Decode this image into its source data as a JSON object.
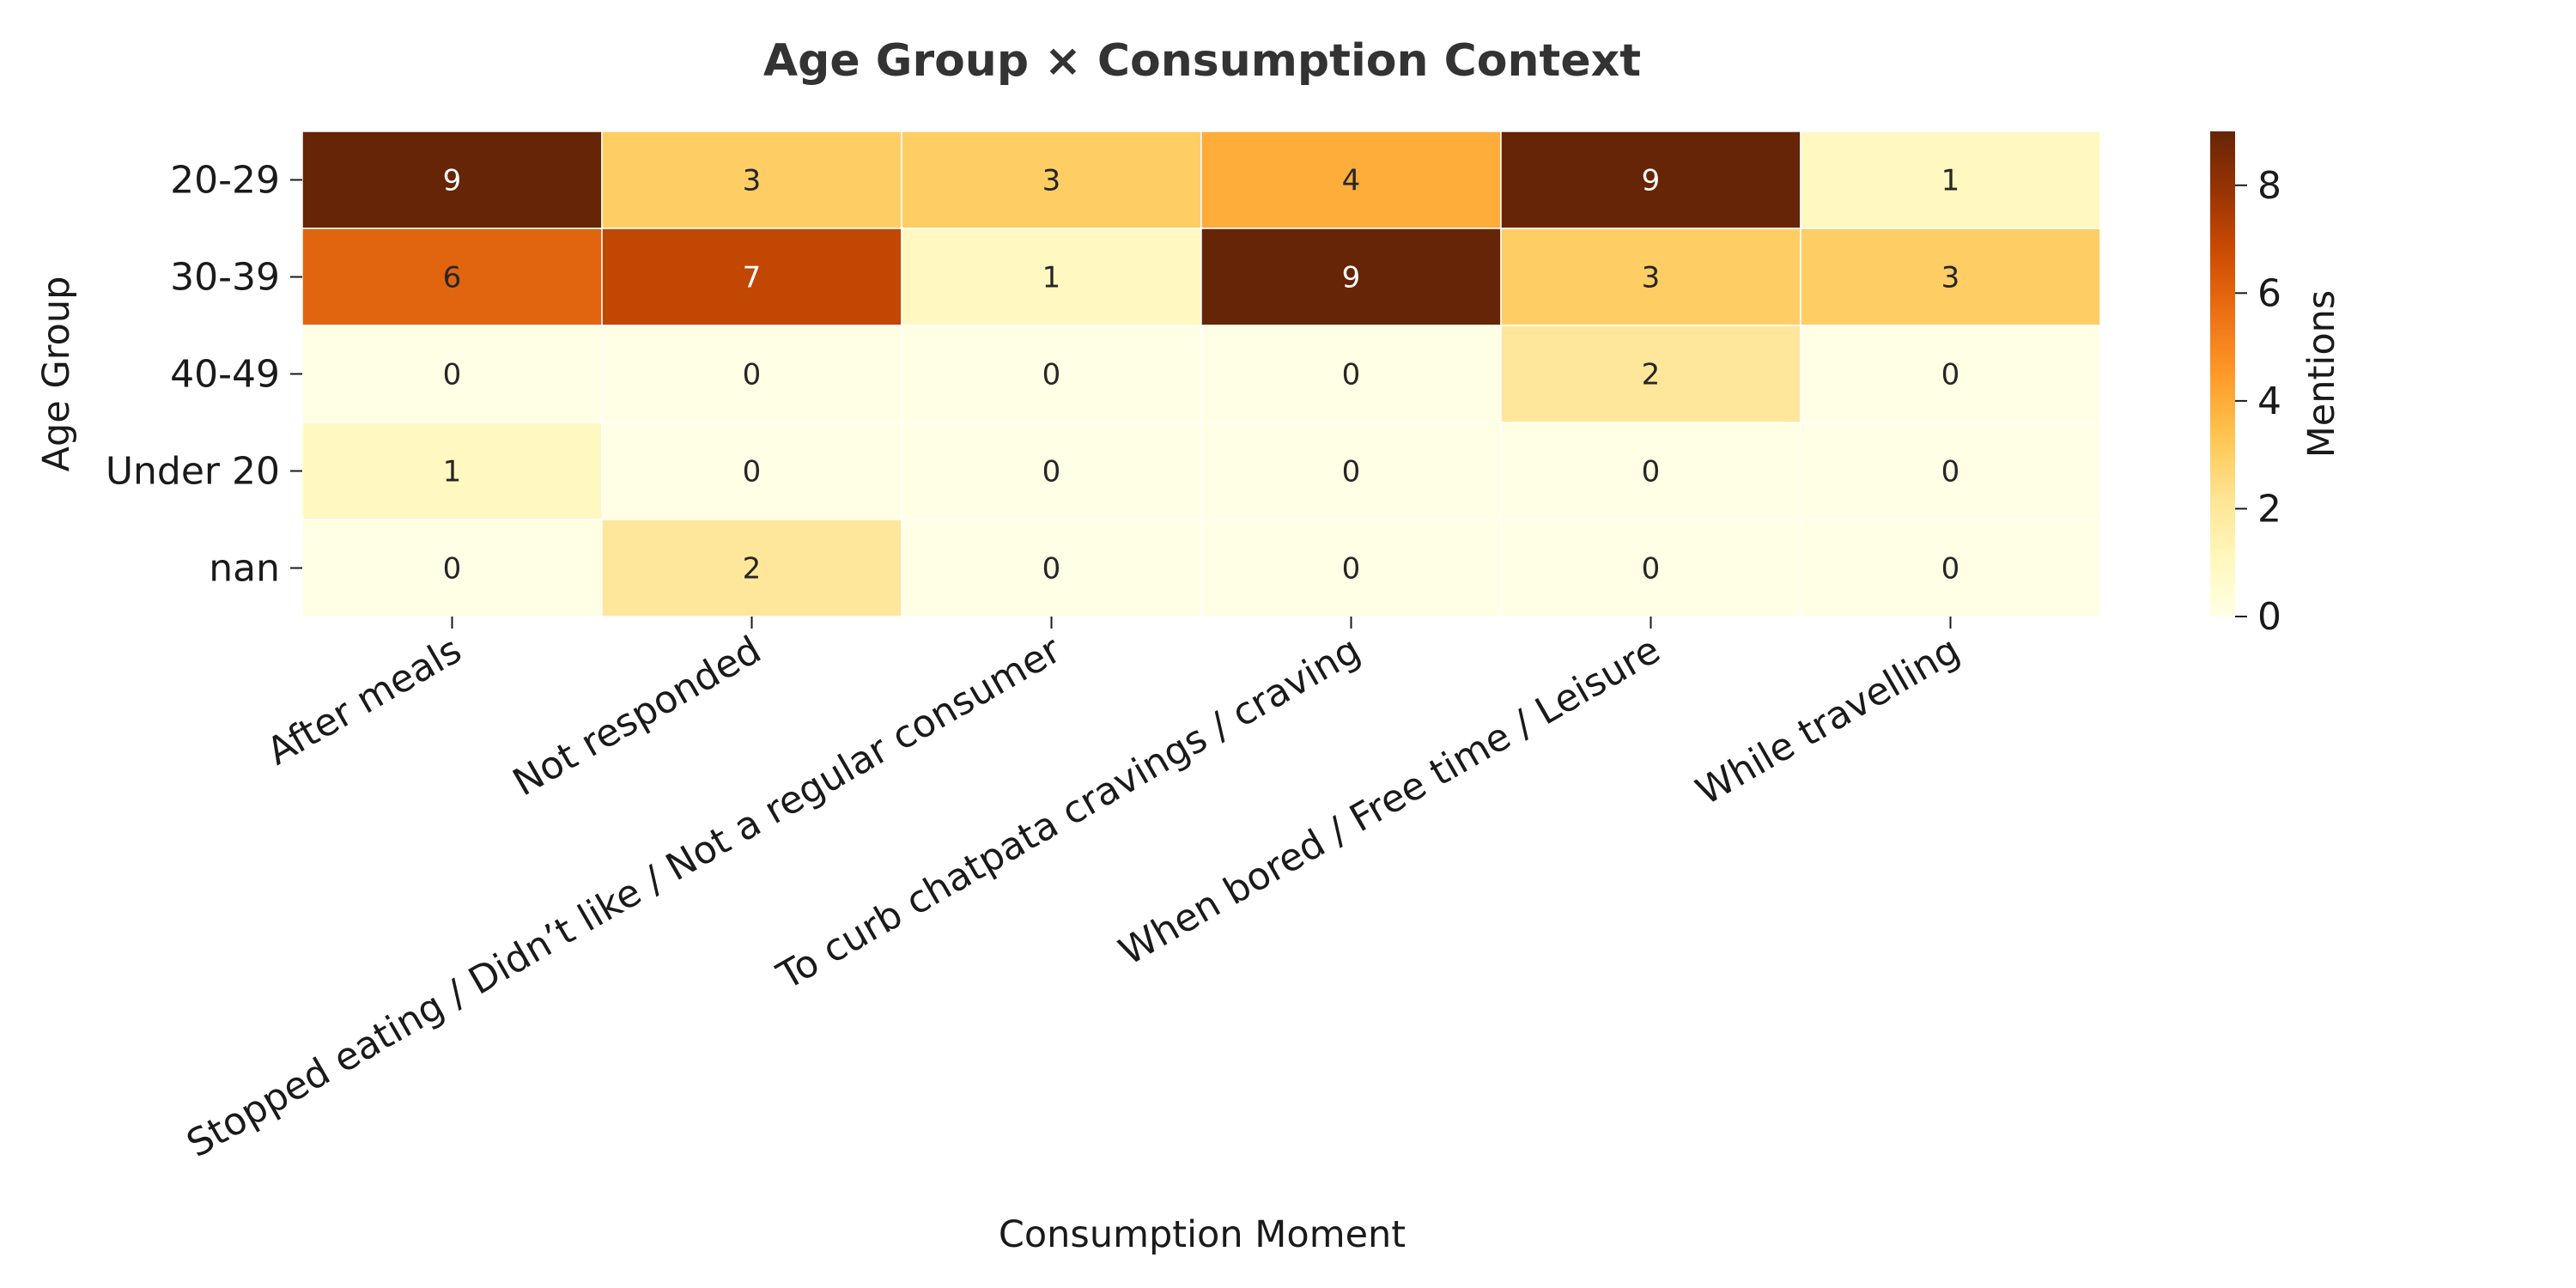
{
  "chart_data": {
    "type": "heatmap",
    "title": "Age Group × Consumption Context",
    "xlabel": "Consumption Moment",
    "ylabel": "Age Group",
    "x_categories": [
      "After meals",
      "Not responded",
      "Stopped eating / Didn’t like / Not a regular consumer",
      "To curb chatpata cravings / craving",
      "When bored / Free time / Leisure",
      "While travelling"
    ],
    "y_categories": [
      "20-29",
      "30-39",
      "40-49",
      "Under 20",
      "nan"
    ],
    "values": [
      [
        9,
        3,
        3,
        4,
        9,
        1
      ],
      [
        6,
        7,
        1,
        9,
        3,
        3
      ],
      [
        0,
        0,
        0,
        0,
        2,
        0
      ],
      [
        1,
        0,
        0,
        0,
        0,
        0
      ],
      [
        0,
        2,
        0,
        0,
        0,
        0
      ]
    ],
    "colorbar": {
      "label": "Mentions",
      "min": 0,
      "max": 9,
      "ticks": [
        0,
        2,
        4,
        6,
        8
      ],
      "colormap": "YlOrBr"
    },
    "annotations": true,
    "grid": false
  }
}
